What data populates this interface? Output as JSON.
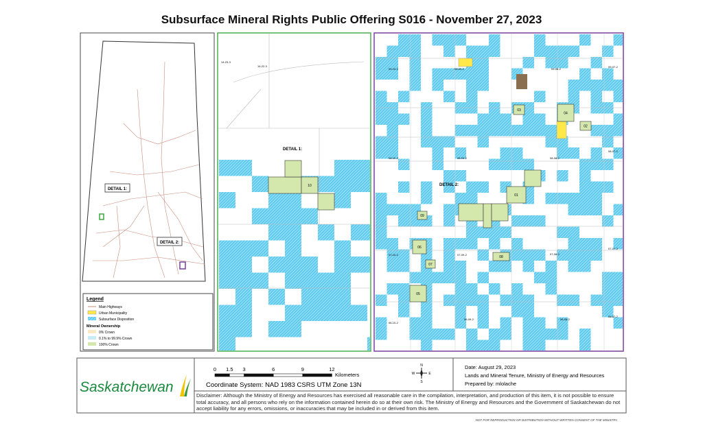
{
  "header": {
    "title": "Subsurface Mineral Rights Public Offering S016 - November 27, 2023"
  },
  "overview": {
    "detail_labels": [
      "DETAIL 1:",
      "DETAIL 2:"
    ]
  },
  "legend": {
    "title": "Legend",
    "items": [
      "Main Highways",
      "Urban Municipality",
      "Subsurface Disposition"
    ],
    "ownership_title": "Mineral Ownership",
    "ownership_items": [
      "0% Crown",
      "0.1% to 99.9% Crown",
      "100% Crown"
    ]
  },
  "detail1": {
    "label": "DETAIL 1:",
    "townships": [
      "14-23-3",
      "14-22-3"
    ],
    "parcels": [
      "10"
    ]
  },
  "detail2": {
    "label": "DETAIL 2:",
    "townships": [
      "09-10-2",
      "09-09-2",
      "09-08-2",
      "09-07-2",
      "08-10-2",
      "08-09-2",
      "08-08-2",
      "08-07-2",
      "07-10-2",
      "07-09-2",
      "07-08-2",
      "07-07-2",
      "06-10-2",
      "06-09-2",
      "06-08-2",
      "06-07-2"
    ],
    "parcels": [
      "01",
      "02",
      "03",
      "04",
      "05",
      "06",
      "07",
      "08",
      "09"
    ]
  },
  "footer": {
    "logo": "Saskatchewan",
    "scale": {
      "ticks": [
        0,
        1.5,
        3,
        6,
        9,
        12
      ],
      "unit": "Kilometers"
    },
    "coordinate_system": "Coordinate System: NAD 1983 CSRS UTM Zone 13N",
    "compass": [
      "N",
      "S",
      "E",
      "W"
    ],
    "date": "Date: August 29, 2023",
    "branch": "Lands and Mineral Tenure,  Ministry of Energy and Resources",
    "prepared_by": "Prepared by: mlolache",
    "disclaimer": "Disclaimer: Although the Ministry of Energy and Resources has exercised all reasonable care in the compilation, interpretation, and production of this item, it is not possible to ensure total accuracy, and all persons who rely on the information contained herein do so at their own risk. The Ministry of Energy and Resources and the Government of Saskatchewan do not accept liability for any errors, omissions, or inaccuracies that may be included in or derived from this item.",
    "note": "NOT FOR REPRODUCTION OR DISTRIBUTION WITHOUT WRITTEN CONSENT OF THE MINISTRY."
  }
}
